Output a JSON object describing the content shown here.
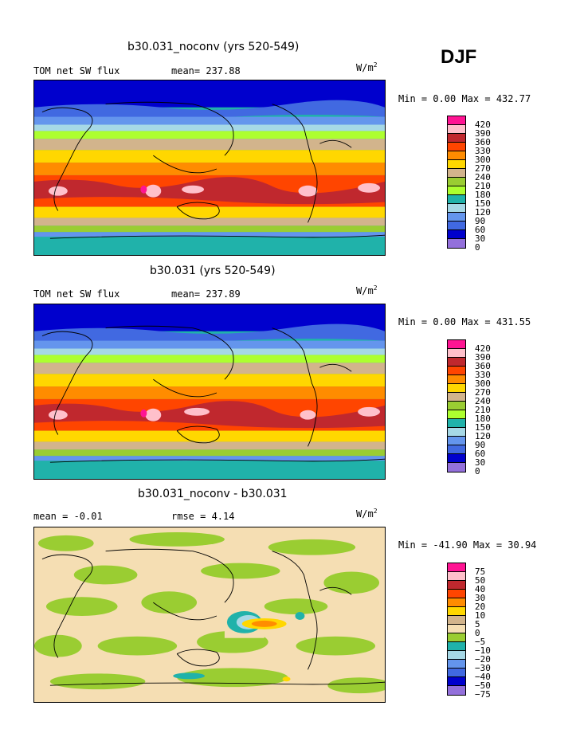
{
  "season": "DJF",
  "units": "W/m",
  "units_sup": "2",
  "panels": [
    {
      "title": "b30.031_noconv (yrs 520-549)",
      "left_label": "TOM net SW flux",
      "stat1": "mean= 237.88",
      "stat2": "",
      "minmax": "Min =   0.00 Max = 432.77",
      "levels": [
        "420",
        "390",
        "360",
        "330",
        "300",
        "270",
        "240",
        "210",
        "180",
        "150",
        "120",
        "90",
        "60",
        "30",
        "0"
      ],
      "colors": [
        "#ff1493",
        "#ffc0cb",
        "#c0282e",
        "#ff4500",
        "#ff8c00",
        "#ffd700",
        "#d2b48c",
        "#9acd32",
        "#adff2f",
        "#20b2aa",
        "#a6d8e6",
        "#6495ed",
        "#4169e1",
        "#0000cd",
        "#9370db"
      ]
    },
    {
      "title": "b30.031 (yrs 520-549)",
      "left_label": "TOM net SW flux",
      "stat1": "mean= 237.89",
      "stat2": "",
      "minmax": "Min =   0.00 Max = 431.55",
      "levels": [
        "420",
        "390",
        "360",
        "330",
        "300",
        "270",
        "240",
        "210",
        "180",
        "150",
        "120",
        "90",
        "60",
        "30",
        "0"
      ],
      "colors": [
        "#ff1493",
        "#ffc0cb",
        "#c0282e",
        "#ff4500",
        "#ff8c00",
        "#ffd700",
        "#d2b48c",
        "#9acd32",
        "#adff2f",
        "#20b2aa",
        "#a6d8e6",
        "#6495ed",
        "#4169e1",
        "#0000cd",
        "#9370db"
      ]
    },
    {
      "title": "b30.031_noconv - b30.031",
      "left_label": "mean =   -0.01",
      "stat1": "",
      "stat2": "rmse =    4.14",
      "minmax": "Min = -41.90 Max =  30.94",
      "levels": [
        "75",
        "50",
        "40",
        "30",
        "20",
        "10",
        "5",
        "0",
        "−5",
        "−10",
        "−20",
        "−30",
        "−40",
        "−50",
        "−75"
      ],
      "colors": [
        "#ff1493",
        "#ffc0cb",
        "#c0282e",
        "#ff4500",
        "#ff8c00",
        "#ffd700",
        "#d2b48c",
        "#f5deb3",
        "#9acd32",
        "#20b2aa",
        "#a6d8e6",
        "#6495ed",
        "#4169e1",
        "#0000cd",
        "#9370db"
      ]
    }
  ]
}
